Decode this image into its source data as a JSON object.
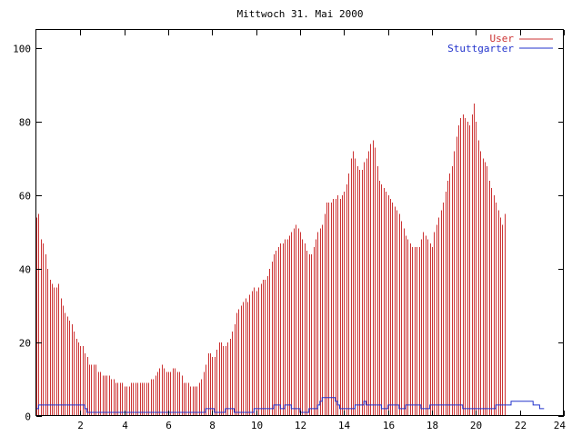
{
  "chart_data": {
    "type": "bar",
    "title": "Mittwoch 31. Mai 2000",
    "xlabel": "",
    "ylabel": "",
    "xlim": [
      0,
      24
    ],
    "ylim": [
      0,
      105
    ],
    "x_ticks": [
      2,
      4,
      6,
      8,
      10,
      12,
      14,
      16,
      18,
      20,
      22,
      24
    ],
    "y_ticks": [
      0,
      20,
      40,
      60,
      80,
      100
    ],
    "grid": false,
    "legend_position": "top-right",
    "colors": {
      "user": "#cc3333",
      "stuttgarter": "#2233cc"
    },
    "series": [
      {
        "name": "User",
        "style": "impulses",
        "x_start": 0,
        "x_step": 0.1,
        "values": [
          54,
          55,
          48,
          47,
          44,
          40,
          37,
          36,
          35,
          35,
          36,
          32,
          30,
          28,
          27,
          26,
          25,
          23,
          21,
          20,
          19,
          19,
          17,
          16,
          14,
          14,
          14,
          14,
          12,
          12,
          11,
          11,
          11,
          11,
          10,
          10,
          9,
          9,
          9,
          9,
          8,
          8,
          8,
          9,
          9,
          9,
          9,
          9,
          9,
          9,
          9,
          9,
          10,
          10,
          11,
          12,
          13,
          14,
          13,
          12,
          12,
          12,
          13,
          13,
          12,
          12,
          11,
          9,
          9,
          9,
          8,
          8,
          8,
          8,
          9,
          10,
          12,
          14,
          17,
          17,
          16,
          16,
          18,
          20,
          20,
          19,
          19,
          20,
          21,
          23,
          25,
          28,
          29,
          30,
          31,
          32,
          31,
          33,
          34,
          35,
          34,
          35,
          36,
          37,
          37,
          38,
          40,
          42,
          44,
          45,
          46,
          47,
          47,
          48,
          48,
          49,
          50,
          51,
          52,
          51,
          50,
          48,
          47,
          45,
          44,
          44,
          46,
          48,
          50,
          51,
          52,
          55,
          58,
          58,
          58,
          59,
          59,
          60,
          59,
          60,
          61,
          63,
          66,
          70,
          72,
          70,
          68,
          67,
          67,
          69,
          70,
          72,
          74,
          75,
          73,
          68,
          64,
          63,
          62,
          61,
          60,
          59,
          58,
          57,
          56,
          55,
          53,
          51,
          49,
          48,
          47,
          46,
          46,
          46,
          46,
          48,
          50,
          49,
          48,
          47,
          46,
          50,
          52,
          54,
          56,
          58,
          61,
          64,
          66,
          68,
          72,
          76,
          79,
          81,
          82,
          81,
          80,
          79,
          82,
          85,
          80,
          75,
          72,
          70,
          69,
          68,
          64,
          62,
          60,
          58,
          56,
          54,
          52,
          55
        ]
      },
      {
        "name": "Stuttgarter",
        "style": "line",
        "x_start": 0,
        "x_step": 0.1,
        "values": [
          2,
          3,
          3,
          3,
          3,
          3,
          3,
          3,
          3,
          3,
          3,
          3,
          3,
          3,
          3,
          3,
          3,
          3,
          3,
          3,
          3,
          3,
          2,
          1,
          1,
          1,
          1,
          1,
          1,
          1,
          1,
          1,
          1,
          1,
          1,
          1,
          1,
          1,
          1,
          1,
          1,
          1,
          1,
          1,
          1,
          1,
          1,
          1,
          1,
          1,
          1,
          1,
          1,
          1,
          1,
          1,
          1,
          1,
          1,
          1,
          1,
          1,
          1,
          1,
          1,
          1,
          1,
          1,
          1,
          1,
          1,
          1,
          1,
          1,
          1,
          1,
          1,
          2,
          2,
          2,
          2,
          1,
          1,
          1,
          1,
          1,
          2,
          2,
          2,
          2,
          1,
          1,
          1,
          1,
          1,
          1,
          1,
          1,
          1,
          2,
          2,
          2,
          2,
          2,
          2,
          2,
          2,
          2,
          3,
          3,
          3,
          2,
          2,
          3,
          3,
          3,
          2,
          2,
          2,
          2,
          1,
          1,
          1,
          1,
          2,
          2,
          2,
          2,
          3,
          4,
          5,
          5,
          5,
          5,
          5,
          5,
          4,
          3,
          2,
          2,
          2,
          2,
          2,
          2,
          2,
          3,
          3,
          3,
          3,
          4,
          3,
          3,
          3,
          3,
          3,
          3,
          3,
          2,
          2,
          2,
          3,
          3,
          3,
          3,
          3,
          2,
          2,
          2,
          3,
          3,
          3,
          3,
          3,
          3,
          3,
          2,
          2,
          2,
          2,
          3,
          3,
          3,
          3,
          3,
          3,
          3,
          3,
          3,
          3,
          3,
          3,
          3,
          3,
          3,
          2,
          2,
          2,
          2,
          2,
          2,
          2,
          2,
          2,
          2,
          2,
          2,
          2,
          2,
          2,
          3,
          3,
          3,
          3,
          3,
          3,
          3,
          4,
          4,
          4,
          4,
          4,
          4,
          4,
          4,
          4,
          4,
          3,
          3,
          3,
          2,
          2
        ]
      }
    ]
  }
}
